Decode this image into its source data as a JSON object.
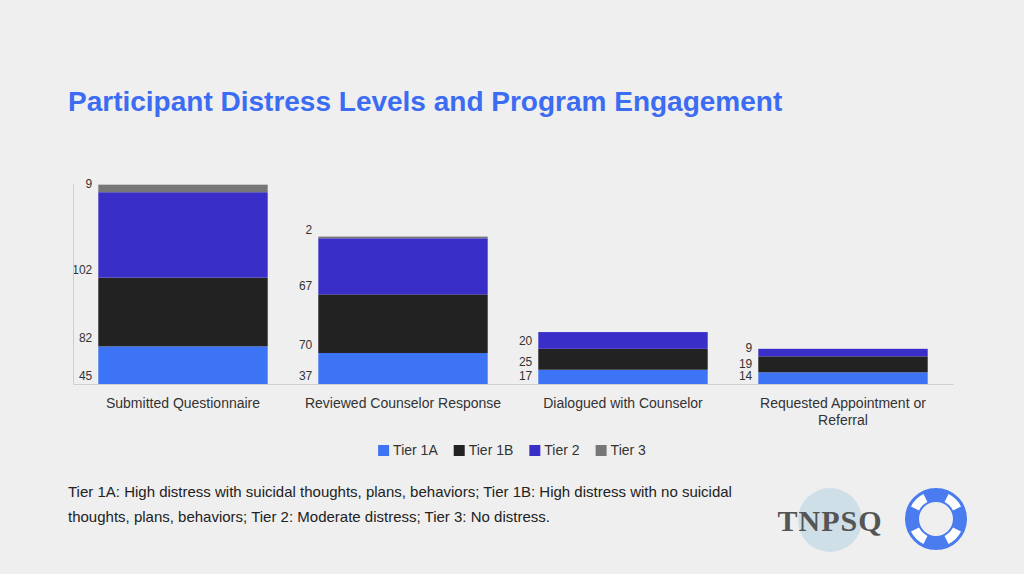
{
  "chart_data": {
    "type": "bar",
    "title": "Participant Distress Levels and Program Engagement",
    "categories": [
      "Submitted Questionnaire",
      "Reviewed Counselor Response",
      "Dialogued with Counselor",
      "Requested Appointment or Referral"
    ],
    "series": [
      {
        "name": "Tier 1A",
        "color": "#3d74f5",
        "values": [
          45,
          37,
          17,
          14
        ]
      },
      {
        "name": "Tier 1B",
        "color": "#222222",
        "values": [
          82,
          70,
          25,
          19
        ]
      },
      {
        "name": "Tier 2",
        "color": "#3a2ec8",
        "values": [
          102,
          67,
          20,
          9
        ]
      },
      {
        "name": "Tier 3",
        "color": "#777777",
        "values": [
          9,
          2,
          null,
          null
        ]
      }
    ],
    "ylim": [
      0,
      240
    ],
    "stacked": true,
    "data_labels": true,
    "tick_labels": "x",
    "grid": false,
    "legend": "bottom",
    "annotations": [
      "Tier 1A: High distress with suicidal thoughts, plans, behaviors; Tier 1B: High distress with no suicidal thoughts, plans, behaviors; Tier 2: Moderate distress; Tier 3: No distress.",
      "TNPSQ"
    ]
  }
}
